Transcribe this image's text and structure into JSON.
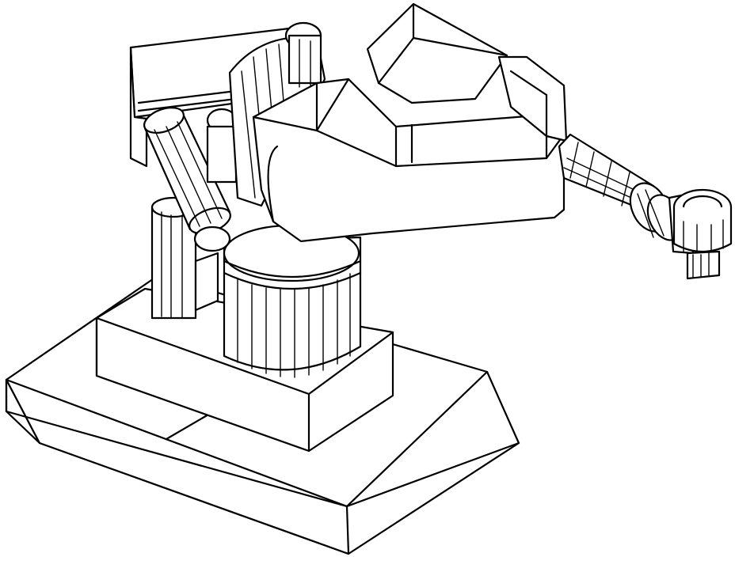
{
  "figure": {
    "subject": "robot-arm-wireframe",
    "line_color": "#000000",
    "background_color": "#ffffff",
    "parts": [
      "floor-base",
      "pedestal",
      "column",
      "shoulder",
      "upper-arm",
      "forearm",
      "wrist",
      "end-effector",
      "counterbalance-cylinder",
      "motor-block"
    ]
  }
}
